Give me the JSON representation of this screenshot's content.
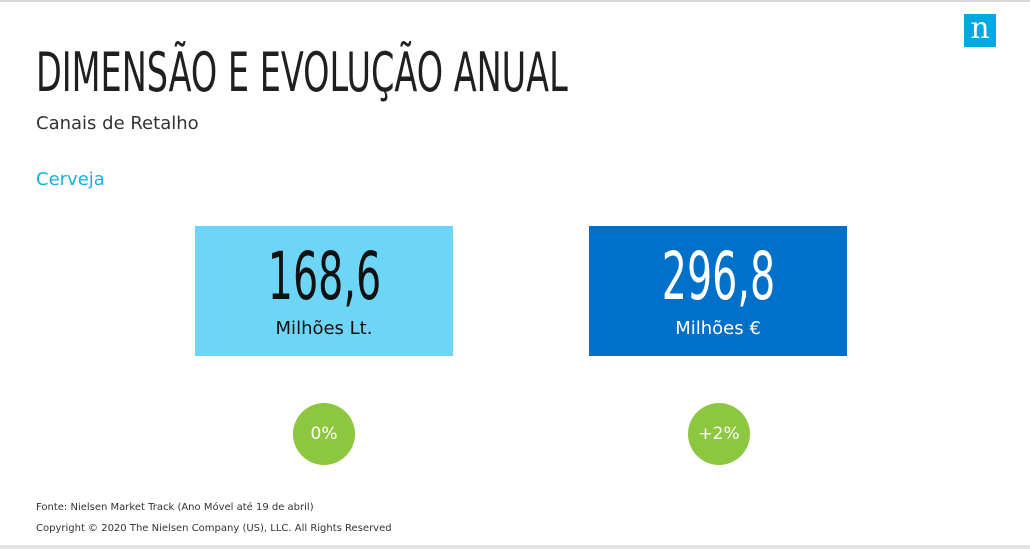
{
  "logo": {
    "letter": "n"
  },
  "slide": {
    "title": "DIMENSÃO E EVOLUÇÃO ANUAL",
    "subtitle": "Canais de Retalho",
    "category": "Cerveja"
  },
  "kpis": [
    {
      "value": "168,6",
      "unit": "Milhões Lt.",
      "change": "0%"
    },
    {
      "value": "296,8",
      "unit": "Milhões €",
      "change": "+2%"
    }
  ],
  "colors": {
    "volume_box": "#6dd6f6",
    "value_box": "#0070c8",
    "growth_badge": "#8dc63f",
    "accent": "#1ab0e0",
    "logo": "#00a9e0"
  },
  "footer": {
    "source": "Fonte: Nielsen Market Track (Ano Móvel até 19 de abril)",
    "copyright": "Copyright © 2020 The Nielsen Company (US), LLC. All Rights Reserved"
  }
}
